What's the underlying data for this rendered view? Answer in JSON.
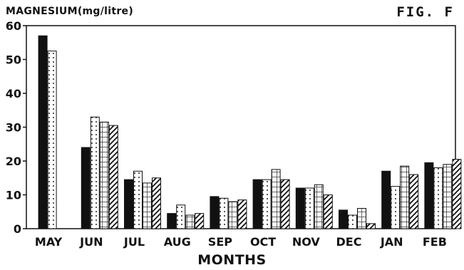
{
  "figure_label": "FIG. F",
  "chart_data": {
    "type": "bar",
    "title": "MAGNESIUM(mg/litre)",
    "xlabel": "MONTHS",
    "ylabel": "",
    "ylim": [
      0,
      60
    ],
    "yticks": [
      0,
      10,
      20,
      30,
      40,
      50,
      60
    ],
    "categories": [
      "MAY",
      "JUN",
      "JUL",
      "AUG",
      "SEP",
      "OCT",
      "NOV",
      "DEC",
      "JAN",
      "FEB"
    ],
    "grid": false,
    "legend": "none",
    "series": [
      {
        "pattern": "solid",
        "values": [
          57,
          24,
          14.5,
          4.5,
          9.5,
          14.5,
          12,
          5.5,
          17,
          19.5
        ]
      },
      {
        "pattern": "dots",
        "values": [
          52.5,
          33,
          17,
          7,
          9,
          14.5,
          12,
          4,
          12.5,
          18
        ]
      },
      {
        "pattern": "crosshatch",
        "values": [
          0,
          31.5,
          13.5,
          4,
          8,
          17.5,
          13,
          6,
          18.5,
          19
        ]
      },
      {
        "pattern": "diagonal",
        "values": [
          0,
          30.5,
          15,
          4.5,
          8.5,
          14.5,
          10,
          1.5,
          16,
          20.5
        ]
      }
    ]
  }
}
